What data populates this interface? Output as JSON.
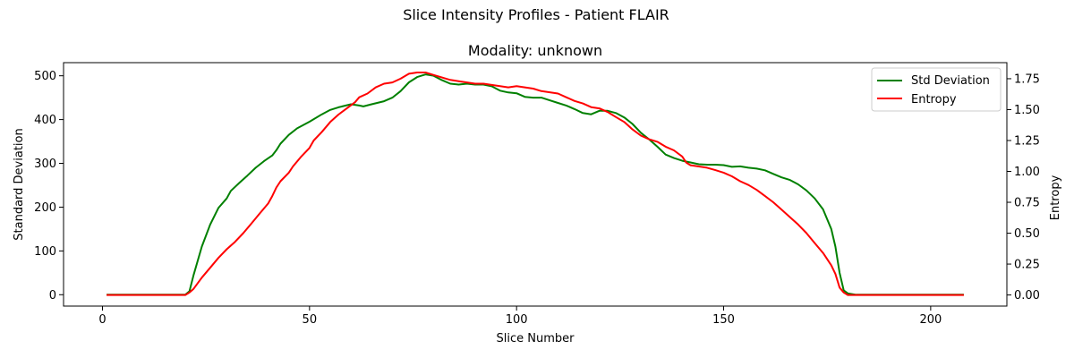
{
  "chart_data": {
    "type": "line",
    "suptitle": "Slice Intensity Profiles - Patient FLAIR",
    "title": "Modality: unknown",
    "xlabel": "Slice Number",
    "ylabel_left": "Standard Deviation",
    "ylabel_right": "Entropy",
    "xlim": [
      -9.4,
      218.4
    ],
    "ylim_left": [
      -26,
      530
    ],
    "ylim_right": [
      -0.09,
      1.88
    ],
    "x_ticks": [
      0,
      50,
      100,
      150,
      200
    ],
    "y_left_ticks": [
      0,
      100,
      200,
      300,
      400,
      500
    ],
    "y_right_ticks": [
      0.0,
      0.25,
      0.5,
      0.75,
      1.0,
      1.25,
      1.5,
      1.75
    ],
    "y_right_tick_labels": [
      "0.00",
      "0.25",
      "0.50",
      "0.75",
      "1.00",
      "1.25",
      "1.50",
      "1.75"
    ],
    "grid": false,
    "legend_position": "upper right",
    "colors": {
      "std": "#008000",
      "entropy": "#ff0000",
      "ylabel_left": "#008000",
      "ylabel_right": "#ff0000"
    },
    "series": [
      {
        "name": "Std Deviation",
        "axis": "left",
        "points": [
          [
            1,
            0
          ],
          [
            20,
            0
          ],
          [
            21,
            8
          ],
          [
            22,
            45
          ],
          [
            24,
            110
          ],
          [
            26,
            160
          ],
          [
            28,
            198
          ],
          [
            30,
            220
          ],
          [
            31,
            237
          ],
          [
            33,
            255
          ],
          [
            35,
            272
          ],
          [
            37,
            290
          ],
          [
            39,
            305
          ],
          [
            41,
            318
          ],
          [
            42,
            330
          ],
          [
            43,
            345
          ],
          [
            45,
            365
          ],
          [
            47,
            380
          ],
          [
            50,
            395
          ],
          [
            53,
            412
          ],
          [
            55,
            422
          ],
          [
            57,
            428
          ],
          [
            60,
            435
          ],
          [
            62,
            432
          ],
          [
            63,
            430
          ],
          [
            65,
            435
          ],
          [
            68,
            442
          ],
          [
            70,
            450
          ],
          [
            72,
            465
          ],
          [
            74,
            485
          ],
          [
            76,
            497
          ],
          [
            78,
            503
          ],
          [
            80,
            500
          ],
          [
            82,
            490
          ],
          [
            84,
            482
          ],
          [
            86,
            480
          ],
          [
            88,
            482
          ],
          [
            90,
            480
          ],
          [
            92,
            480
          ],
          [
            94,
            476
          ],
          [
            96,
            466
          ],
          [
            98,
            462
          ],
          [
            100,
            460
          ],
          [
            102,
            452
          ],
          [
            104,
            450
          ],
          [
            106,
            450
          ],
          [
            108,
            444
          ],
          [
            110,
            438
          ],
          [
            112,
            432
          ],
          [
            114,
            424
          ],
          [
            116,
            415
          ],
          [
            118,
            412
          ],
          [
            120,
            420
          ],
          [
            122,
            420
          ],
          [
            124,
            415
          ],
          [
            126,
            405
          ],
          [
            128,
            390
          ],
          [
            130,
            370
          ],
          [
            132,
            355
          ],
          [
            134,
            338
          ],
          [
            136,
            320
          ],
          [
            138,
            312
          ],
          [
            140,
            306
          ],
          [
            142,
            302
          ],
          [
            144,
            298
          ],
          [
            146,
            297
          ],
          [
            148,
            297
          ],
          [
            150,
            296
          ],
          [
            152,
            292
          ],
          [
            154,
            293
          ],
          [
            156,
            290
          ],
          [
            158,
            288
          ],
          [
            160,
            284
          ],
          [
            162,
            276
          ],
          [
            164,
            268
          ],
          [
            166,
            262
          ],
          [
            168,
            252
          ],
          [
            170,
            238
          ],
          [
            172,
            220
          ],
          [
            174,
            195
          ],
          [
            176,
            150
          ],
          [
            177,
            110
          ],
          [
            178,
            50
          ],
          [
            179,
            10
          ],
          [
            180,
            3
          ],
          [
            182,
            0
          ],
          [
            208,
            0
          ]
        ]
      },
      {
        "name": "Entropy",
        "axis": "right",
        "points": [
          [
            1,
            0
          ],
          [
            20,
            0
          ],
          [
            21,
            0.02
          ],
          [
            22,
            0.05
          ],
          [
            24,
            0.14
          ],
          [
            26,
            0.22
          ],
          [
            28,
            0.3
          ],
          [
            30,
            0.37
          ],
          [
            32,
            0.43
          ],
          [
            34,
            0.5
          ],
          [
            36,
            0.58
          ],
          [
            38,
            0.66
          ],
          [
            40,
            0.74
          ],
          [
            41,
            0.8
          ],
          [
            42,
            0.87
          ],
          [
            43,
            0.92
          ],
          [
            45,
            0.99
          ],
          [
            46,
            1.04
          ],
          [
            48,
            1.12
          ],
          [
            50,
            1.19
          ],
          [
            51,
            1.25
          ],
          [
            53,
            1.32
          ],
          [
            55,
            1.4
          ],
          [
            57,
            1.46
          ],
          [
            59,
            1.51
          ],
          [
            61,
            1.56
          ],
          [
            62,
            1.6
          ],
          [
            64,
            1.63
          ],
          [
            66,
            1.68
          ],
          [
            68,
            1.71
          ],
          [
            70,
            1.72
          ],
          [
            72,
            1.75
          ],
          [
            74,
            1.79
          ],
          [
            76,
            1.8
          ],
          [
            78,
            1.8
          ],
          [
            80,
            1.78
          ],
          [
            82,
            1.76
          ],
          [
            84,
            1.74
          ],
          [
            86,
            1.73
          ],
          [
            88,
            1.72
          ],
          [
            90,
            1.71
          ],
          [
            92,
            1.71
          ],
          [
            94,
            1.7
          ],
          [
            96,
            1.69
          ],
          [
            98,
            1.68
          ],
          [
            100,
            1.69
          ],
          [
            102,
            1.68
          ],
          [
            104,
            1.67
          ],
          [
            106,
            1.65
          ],
          [
            108,
            1.64
          ],
          [
            110,
            1.63
          ],
          [
            112,
            1.6
          ],
          [
            114,
            1.57
          ],
          [
            116,
            1.55
          ],
          [
            118,
            1.52
          ],
          [
            120,
            1.51
          ],
          [
            122,
            1.48
          ],
          [
            124,
            1.44
          ],
          [
            126,
            1.4
          ],
          [
            128,
            1.34
          ],
          [
            130,
            1.29
          ],
          [
            132,
            1.26
          ],
          [
            134,
            1.24
          ],
          [
            136,
            1.2
          ],
          [
            138,
            1.17
          ],
          [
            140,
            1.12
          ],
          [
            141,
            1.07
          ],
          [
            142,
            1.05
          ],
          [
            144,
            1.04
          ],
          [
            146,
            1.03
          ],
          [
            148,
            1.01
          ],
          [
            150,
            0.99
          ],
          [
            152,
            0.96
          ],
          [
            154,
            0.92
          ],
          [
            156,
            0.89
          ],
          [
            158,
            0.85
          ],
          [
            160,
            0.8
          ],
          [
            162,
            0.75
          ],
          [
            164,
            0.69
          ],
          [
            166,
            0.63
          ],
          [
            168,
            0.57
          ],
          [
            170,
            0.5
          ],
          [
            172,
            0.42
          ],
          [
            174,
            0.34
          ],
          [
            176,
            0.24
          ],
          [
            177,
            0.17
          ],
          [
            178,
            0.06
          ],
          [
            179,
            0.02
          ],
          [
            180,
            0
          ],
          [
            208,
            0
          ]
        ]
      }
    ]
  }
}
